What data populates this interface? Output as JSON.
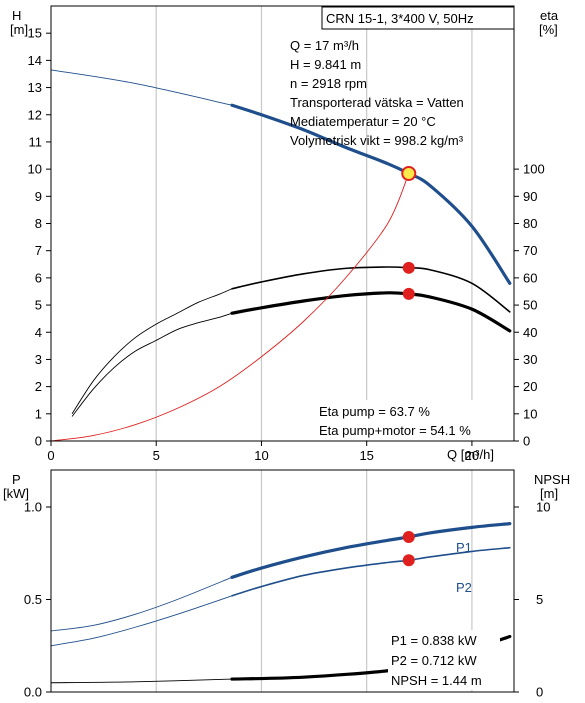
{
  "charts": {
    "top": {
      "left_axis_title": "H",
      "left_axis_unit": "[m]",
      "right_axis_title": "eta",
      "right_axis_unit": "[%]",
      "x_axis_label": "Q [m³/h]",
      "header_box": "CRN 15-1, 3*400 V, 50Hz",
      "info_lines": [
        "Q = 17 m³/h",
        "H = 9.841 m",
        "n = 2918 rpm",
        "Transporterad vätska = Vatten",
        "Mediatemperatur = 20 °C",
        "Volymetrisk vikt = 998.2 kg/m³"
      ],
      "eta_lines": [
        "Eta pump = 63.7 %",
        "Eta pump+motor = 54.1 %"
      ],
      "x_ticks": [
        "0",
        "5",
        "10",
        "15",
        "20"
      ],
      "h_ticks": [
        "0",
        "1",
        "2",
        "3",
        "4",
        "5",
        "6",
        "7",
        "8",
        "9",
        "10",
        "11",
        "12",
        "13",
        "14",
        "15"
      ],
      "eta_ticks": [
        "0",
        "10",
        "20",
        "30",
        "40",
        "50",
        "60",
        "70",
        "80",
        "90",
        "100"
      ]
    },
    "bottom": {
      "left_axis_title": "P",
      "left_axis_unit": "[kW]",
      "right_axis_title": "NPSH",
      "right_axis_unit": "[m]",
      "p_ticks": [
        "0.0",
        "0.5",
        "1.0"
      ],
      "npsh_ticks": [
        "0",
        "5",
        "10"
      ],
      "curve_label_p1": "P1",
      "curve_label_p2": "P2",
      "info_lines": [
        "P1 = 0.838 kW",
        "P2 = 0.712 kW",
        "NPSH = 1.44 m"
      ]
    }
  },
  "colors": {
    "blue": "#1f4e8c",
    "red": "#e0201e",
    "highlight": "#ffe84a",
    "grid": "#c8c8c8"
  },
  "chart_data": [
    {
      "type": "line",
      "title": "CRN 15-1, 3*400 V, 50Hz",
      "xlabel": "Q [m³/h]",
      "ylabel": "H [m]",
      "y2label": "eta [%]",
      "xlim": [
        0,
        22
      ],
      "ylim": [
        0,
        16
      ],
      "y2lim": [
        0,
        160
      ],
      "grid": true,
      "series": [
        {
          "axis": "left",
          "x": [
            0,
            4,
            8.6,
            10,
            12,
            14,
            16,
            17,
            18,
            20,
            21.8
          ],
          "values": [
            13.65,
            13.15,
            12.35,
            12.0,
            11.45,
            10.8,
            10.2,
            9.84,
            9.4,
            7.9,
            5.8
          ],
          "bold_from_x": 8.6
        },
        {
          "axis": "right",
          "x": [
            1,
            2,
            3,
            4,
            5,
            6,
            7,
            8,
            8.6,
            10,
            12,
            14,
            16,
            17,
            18,
            20,
            21.8
          ],
          "values": [
            10,
            22,
            31,
            38,
            43,
            47,
            51,
            54,
            56,
            58.5,
            61.5,
            63.5,
            64.0,
            63.7,
            63.0,
            58.0,
            47.5
          ],
          "bold_from_x": 8.6
        },
        {
          "axis": "right",
          "x": [
            1,
            2,
            3,
            4,
            5,
            6,
            7,
            8,
            8.6,
            10,
            12,
            14,
            16,
            17,
            18,
            20,
            21.8
          ],
          "values": [
            9,
            19,
            27,
            33,
            37,
            41,
            43.5,
            45.5,
            47,
            49,
            51.5,
            53.5,
            54.5,
            54.1,
            53.0,
            48.5,
            40.5
          ],
          "bold_from_x": 8.6
        },
        {
          "axis": "right",
          "x": [
            0,
            2,
            4,
            6,
            8,
            10,
            12,
            14,
            16,
            17
          ],
          "values": [
            0,
            2,
            6,
            12,
            20,
            31,
            44,
            60,
            80,
            98.4
          ]
        }
      ],
      "operating_point": {
        "Q": 17,
        "H": 9.841,
        "eta_pump": 63.7,
        "eta_pump_motor": 54.1
      }
    },
    {
      "type": "line",
      "xlim": [
        0,
        22
      ],
      "ylabel": "P [kW]",
      "y2label": "NPSH [m]",
      "ylim": [
        0,
        1.2
      ],
      "y2lim": [
        0,
        12
      ],
      "grid": true,
      "series": [
        {
          "name": "P1",
          "axis": "left",
          "x": [
            0,
            2,
            4,
            6,
            8.6,
            10,
            12,
            14,
            16,
            17,
            18,
            20,
            21.8
          ],
          "values": [
            0.33,
            0.36,
            0.42,
            0.5,
            0.62,
            0.67,
            0.73,
            0.78,
            0.82,
            0.838,
            0.86,
            0.89,
            0.91
          ],
          "bold_from_x": 8.6
        },
        {
          "name": "P2",
          "axis": "left",
          "x": [
            0,
            2,
            4,
            6,
            8.6,
            10,
            12,
            14,
            16,
            17,
            18,
            20,
            21.8
          ],
          "values": [
            0.25,
            0.29,
            0.35,
            0.42,
            0.52,
            0.57,
            0.63,
            0.67,
            0.7,
            0.712,
            0.73,
            0.76,
            0.78
          ],
          "bold_from_x": 8.6
        },
        {
          "axis": "right",
          "x": [
            0,
            4,
            8.6,
            12,
            16,
            17,
            18,
            20,
            21.8
          ],
          "values": [
            0.5,
            0.55,
            0.7,
            0.8,
            1.15,
            1.44,
            1.6,
            2.3,
            3.0
          ],
          "bold_from_x": 8.6
        }
      ],
      "operating_point": {
        "Q": 17,
        "P1": 0.838,
        "P2": 0.712,
        "NPSH": 1.44
      }
    }
  ]
}
